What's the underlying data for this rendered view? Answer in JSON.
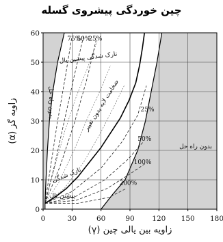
{
  "chart_data": {
    "type": "line",
    "title": "چین خوردگی پیشروی گسله",
    "xlabel": "زاویه بین یالی چین (γ)",
    "ylabel": "زاویه گز (α)",
    "xlim": [
      0,
      180
    ],
    "ylim": [
      0,
      60
    ],
    "xticks": [
      "0",
      "30",
      "60",
      "90",
      "120",
      "150",
      "180"
    ],
    "yticks": [
      "0",
      "10",
      "20",
      "30",
      "40",
      "50",
      "60"
    ],
    "grid": true,
    "no_solution_left": {
      "label": "بدون راه حل",
      "boundary": [
        [
          2,
          2
        ],
        [
          3,
          10
        ],
        [
          4.5,
          20
        ],
        [
          6.5,
          30
        ],
        [
          10,
          40
        ],
        [
          15,
          50
        ],
        [
          22,
          60
        ]
      ]
    },
    "no_solution_right": {
      "label": "بدون راه حل",
      "boundary": [
        [
          60,
          0
        ],
        [
          72,
          5
        ],
        [
          85,
          10
        ],
        [
          98,
          20
        ],
        [
          106,
          30
        ],
        [
          112,
          40
        ],
        [
          118,
          50
        ],
        [
          123,
          60
        ]
      ]
    },
    "series": [
      {
        "name": "",
        "style": "solid",
        "points": [
          [
            2,
            2
          ],
          [
            12,
            4
          ],
          [
            24,
            7
          ],
          [
            36,
            11
          ],
          [
            48,
            16
          ],
          [
            60,
            21
          ],
          [
            70,
            26
          ],
          [
            80,
            31
          ],
          [
            89,
            37
          ],
          [
            96,
            43
          ],
          [
            100,
            49
          ],
          [
            103,
            55
          ],
          [
            105,
            60
          ]
        ]
      }
    ],
    "dashed_curves": [
      {
        "label": "75%",
        "points": [
          [
            2,
            2
          ],
          [
            8,
            15
          ],
          [
            15,
            30
          ],
          [
            23,
            45
          ],
          [
            30,
            59
          ]
        ]
      },
      {
        "label": "50%",
        "points": [
          [
            2,
            2
          ],
          [
            12,
            15
          ],
          [
            22,
            30
          ],
          [
            32,
            45
          ],
          [
            42,
            59
          ]
        ]
      },
      {
        "label": "25%",
        "points": [
          [
            2,
            2
          ],
          [
            18,
            15
          ],
          [
            33,
            30
          ],
          [
            46,
            45
          ],
          [
            56,
            59
          ]
        ]
      },
      {
        "label": "25%",
        "points": [
          [
            2,
            2
          ],
          [
            30,
            6
          ],
          [
            60,
            14
          ],
          [
            82,
            23
          ],
          [
            98,
            32
          ],
          [
            107,
            42
          ]
        ]
      },
      {
        "label": "50%",
        "points": [
          [
            2,
            2
          ],
          [
            32,
            4
          ],
          [
            64,
            10
          ],
          [
            88,
            17
          ],
          [
            104,
            23
          ]
        ]
      },
      {
        "label": "100%",
        "points": [
          [
            2,
            2
          ],
          [
            34,
            3
          ],
          [
            66,
            7
          ],
          [
            90,
            12
          ],
          [
            108,
            16
          ]
        ]
      },
      {
        "label": "200%",
        "points": [
          [
            2,
            2
          ],
          [
            36,
            2
          ],
          [
            68,
            4
          ],
          [
            86,
            7
          ]
        ]
      }
    ],
    "thin_curves": [
      [
        [
          2,
          2
        ],
        [
          10,
          12
        ],
        [
          22,
          26
        ],
        [
          34,
          38
        ],
        [
          46,
          48
        ],
        [
          56,
          57
        ]
      ],
      [
        [
          2,
          2
        ],
        [
          16,
          9
        ],
        [
          32,
          20
        ],
        [
          46,
          31
        ],
        [
          60,
          41
        ],
        [
          70,
          49
        ]
      ],
      [
        [
          2,
          2
        ],
        [
          22,
          7
        ],
        [
          42,
          16
        ],
        [
          58,
          25
        ],
        [
          72,
          34
        ],
        [
          84,
          42
        ]
      ]
    ],
    "annotations": [
      {
        "text": "تارک شدگی پیشین یال",
        "at": [
          47,
          51
        ],
        "rotate": -7
      },
      {
        "text": "ضخامت لایه بدون تغییر",
        "at": [
          62,
          35
        ],
        "rotate": -58
      },
      {
        "text": "نازک شدگی",
        "at": [
          25,
          11
        ],
        "rotate": -22
      },
      {
        "text": "پیشین یال",
        "at": [
          20,
          4
        ],
        "rotate": 0
      }
    ]
  }
}
